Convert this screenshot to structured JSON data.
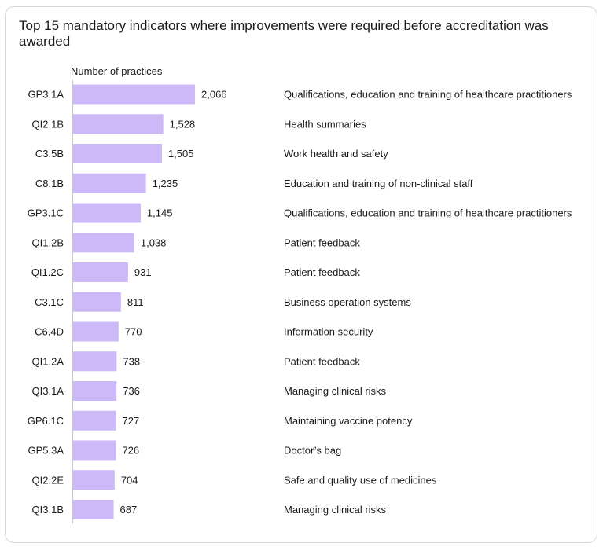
{
  "chart_data": {
    "type": "bar",
    "orientation": "horizontal",
    "title": "Top 15 mandatory indicators where improvements were required before accreditation was awarded",
    "ylabel": "Number of practices",
    "xlim": [
      0,
      2066
    ],
    "grid": false,
    "bar_color": "#cdb8f8",
    "categories": [
      "GP3.1A",
      "QI2.1B",
      "C3.5B",
      "C8.1B",
      "GP3.1C",
      "QI1.2B",
      "QI1.2C",
      "C3.1C",
      "C6.4D",
      "QI1.2A",
      "QI3.1A",
      "GP6.1C",
      "GP5.3A",
      "QI2.2E",
      "QI3.1B"
    ],
    "values": [
      2066,
      1528,
      1505,
      1235,
      1145,
      1038,
      931,
      811,
      770,
      738,
      736,
      727,
      726,
      704,
      687
    ],
    "value_labels": [
      "2,066",
      "1,528",
      "1,505",
      "1,235",
      "1,145",
      "1,038",
      "931",
      "811",
      "770",
      "738",
      "736",
      "727",
      "726",
      "704",
      "687"
    ],
    "descriptions": [
      "Qualifications, education and training of healthcare practitioners",
      "Health summaries",
      "Work health and safety",
      "Education and training of non-clinical staff",
      "Qualifications, education and training of healthcare practitioners",
      "Patient feedback",
      "Patient feedback",
      "Business operation systems",
      "Information security",
      "Patient feedback",
      "Managing clinical risks",
      "Maintaining vaccine potency",
      "Doctor’s bag",
      "Safe and quality use of medicines",
      "Managing clinical risks"
    ]
  }
}
